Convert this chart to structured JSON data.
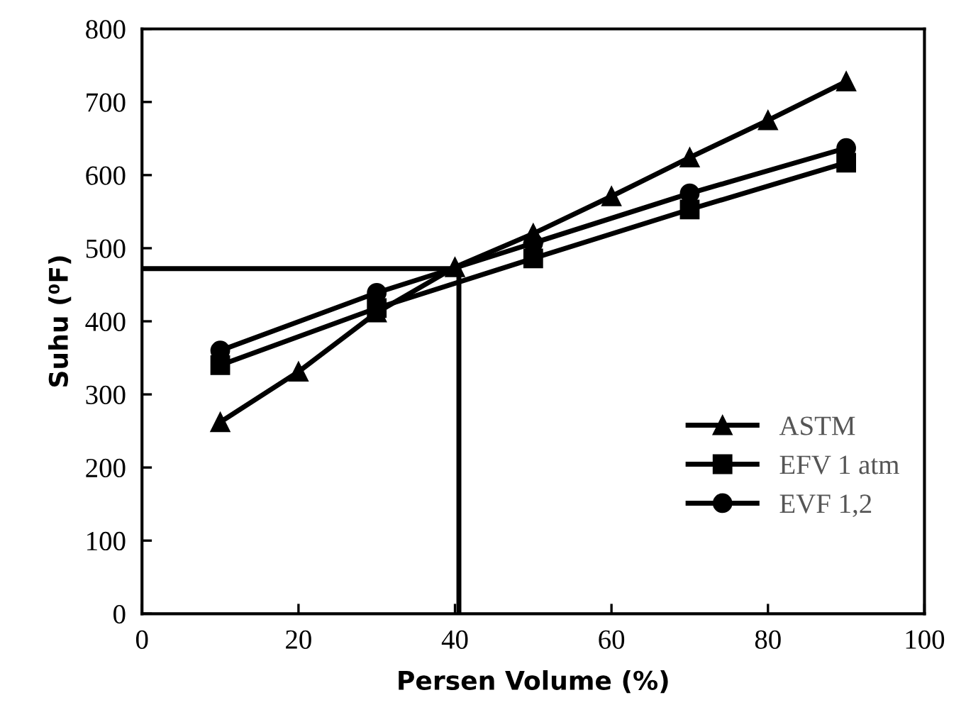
{
  "chart_data": {
    "type": "line",
    "xlabel": "Persen Volume (%)",
    "ylabel": "Suhu (⁰F)",
    "xlim": [
      0,
      100
    ],
    "xticks": [
      0,
      20,
      40,
      60,
      80,
      100
    ],
    "ylim": [
      0,
      800
    ],
    "yticks": [
      0,
      100,
      200,
      300,
      400,
      500,
      600,
      700,
      800
    ],
    "grid": false,
    "legend": "lower right",
    "series": [
      {
        "name": "ASTM",
        "color": "#000000",
        "marker": "triangle",
        "x": [
          10,
          20,
          30,
          40,
          50,
          60,
          70,
          80,
          90
        ],
        "values": [
          262,
          331,
          412,
          474,
          520,
          571,
          624,
          675,
          728
        ]
      },
      {
        "name": "EFV 1 atm",
        "color": "#000000",
        "marker": "square",
        "x": [
          10,
          30,
          50,
          70,
          90
        ],
        "values": [
          340,
          418,
          486,
          553,
          617
        ]
      },
      {
        "name": "EVF 1,2",
        "color": "#000000",
        "marker": "circle",
        "x": [
          10,
          30,
          50,
          70,
          90
        ],
        "values": [
          360,
          439,
          507,
          575,
          637
        ]
      },
      {
        "color": "#000000",
        "marker": "none",
        "x": [
          0,
          40.5,
          40.5
        ],
        "values": [
          472,
          472,
          0
        ]
      }
    ]
  }
}
